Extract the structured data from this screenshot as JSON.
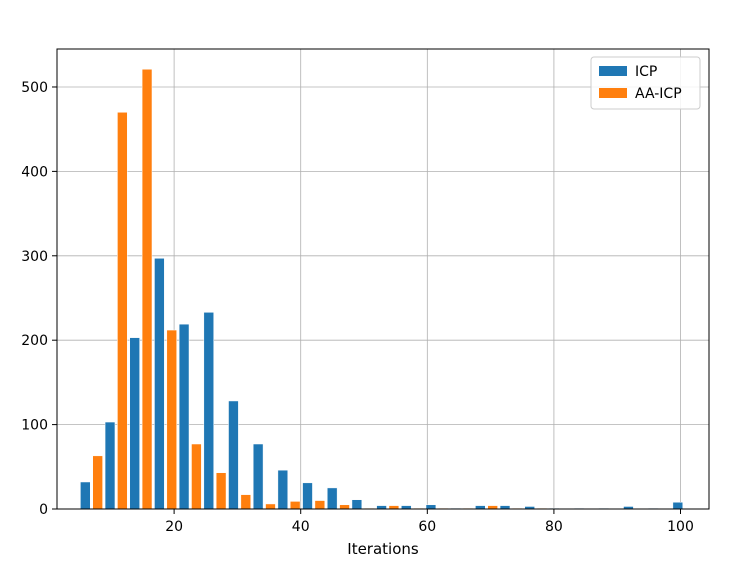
{
  "chart_data": {
    "type": "bar",
    "xlabel": "Iterations",
    "ylabel": "",
    "title": "",
    "xlim": [
      1.5,
      104.5
    ],
    "ylim": [
      0,
      545
    ],
    "xticks": [
      20,
      40,
      60,
      80,
      100
    ],
    "yticks": [
      0,
      100,
      200,
      300,
      400,
      500
    ],
    "grid": true,
    "legend_position": "top-right",
    "bins": [
      5,
      8.9,
      12.8,
      16.7,
      20.6,
      24.5,
      28.4,
      32.3,
      36.2,
      40.1,
      44,
      47.9,
      51.8,
      55.7,
      59.6,
      63.5,
      67.4,
      71.3,
      75.2,
      79.1,
      83,
      86.9,
      90.8,
      94.7,
      98.6
    ],
    "series": [
      {
        "name": "ICP",
        "color": "#1f77b4",
        "values": [
          32,
          103,
          203,
          297,
          219,
          233,
          128,
          77,
          46,
          31,
          25,
          11,
          4,
          4,
          5,
          1,
          4,
          4,
          3,
          1,
          1,
          1,
          3,
          1,
          8
        ]
      },
      {
        "name": "AA-ICP",
        "color": "#ff7f0e",
        "values": [
          63,
          470,
          521,
          212,
          77,
          43,
          17,
          6,
          9,
          10,
          5,
          1,
          4,
          1,
          1,
          1,
          4,
          1,
          1,
          0,
          0,
          0,
          0,
          0,
          0
        ]
      }
    ]
  }
}
